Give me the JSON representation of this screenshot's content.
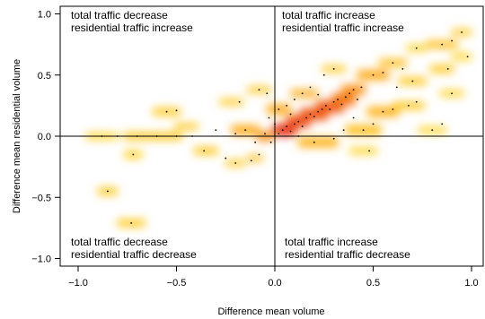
{
  "chart_data": {
    "type": "heatmap",
    "subtype": "smoothed-scatter",
    "xlabel": "Difference mean volume",
    "ylabel": "Difference mean residential volume",
    "xlim": [
      -1.0,
      1.05
    ],
    "ylim": [
      -1.05,
      1.05
    ],
    "xticks": [
      -1.0,
      -0.5,
      0.0,
      0.5,
      1.0
    ],
    "xtick_labels": [
      "−1.0",
      "−0.5",
      "0.0",
      "0.5",
      "1.0"
    ],
    "yticks": [
      -1.0,
      -0.5,
      0.0,
      0.5,
      1.0
    ],
    "ytick_labels": [
      "−1.0",
      "−0.5",
      "0.0",
      "0.5",
      "1.0"
    ],
    "reference_lines": {
      "x": 0,
      "y": 0
    },
    "colors": {
      "low": "#ffff00",
      "mid": "#ff8c00",
      "high": "#e00000",
      "point": "#000000"
    },
    "quadrant_annotations": [
      {
        "position": "top-left",
        "lines": [
          "total traffic decrease",
          "residential traffic increase"
        ]
      },
      {
        "position": "top-right",
        "lines": [
          "total traffic increase",
          "residential traffic increase"
        ]
      },
      {
        "position": "bottom-left",
        "lines": [
          "total traffic decrease",
          "residential traffic decrease"
        ]
      },
      {
        "position": "bottom-right",
        "lines": [
          "total traffic increase",
          "residential traffic decrease"
        ]
      }
    ],
    "density_tiles": [
      {
        "x": -0.85,
        "y": -0.45,
        "w": 0.1,
        "h": 0.06,
        "d": 0.3
      },
      {
        "x": -0.73,
        "y": -0.71,
        "w": 0.14,
        "h": 0.06,
        "d": 0.3
      },
      {
        "x": -0.72,
        "y": -0.15,
        "w": 0.09,
        "h": 0.06,
        "d": 0.25
      },
      {
        "x": -0.55,
        "y": 0.2,
        "w": 0.14,
        "h": 0.06,
        "d": 0.3
      },
      {
        "x": -0.88,
        "y": 0.0,
        "w": 0.16,
        "h": 0.05,
        "d": 0.25
      },
      {
        "x": -0.62,
        "y": 0.0,
        "w": 0.3,
        "h": 0.06,
        "d": 0.3
      },
      {
        "x": -0.45,
        "y": 0.08,
        "w": 0.12,
        "h": 0.05,
        "d": 0.3
      },
      {
        "x": -0.35,
        "y": -0.12,
        "w": 0.12,
        "h": 0.06,
        "d": 0.3
      },
      {
        "x": -0.2,
        "y": -0.22,
        "w": 0.1,
        "h": 0.05,
        "d": 0.3
      },
      {
        "x": -0.1,
        "y": -0.18,
        "w": 0.08,
        "h": 0.05,
        "d": 0.35
      },
      {
        "x": -0.22,
        "y": 0.28,
        "w": 0.12,
        "h": 0.05,
        "d": 0.3
      },
      {
        "x": -0.08,
        "y": 0.38,
        "w": 0.12,
        "h": 0.05,
        "d": 0.3
      },
      {
        "x": -0.15,
        "y": 0.05,
        "w": 0.14,
        "h": 0.08,
        "d": 0.45
      },
      {
        "x": -0.05,
        "y": 0.0,
        "w": 0.08,
        "h": 0.08,
        "d": 0.55
      },
      {
        "x": 0.05,
        "y": 0.05,
        "w": 0.12,
        "h": 0.1,
        "d": 0.9
      },
      {
        "x": 0.12,
        "y": 0.12,
        "w": 0.12,
        "h": 0.1,
        "d": 0.8
      },
      {
        "x": 0.2,
        "y": 0.18,
        "w": 0.14,
        "h": 0.1,
        "d": 0.75
      },
      {
        "x": 0.28,
        "y": 0.24,
        "w": 0.14,
        "h": 0.1,
        "d": 0.75
      },
      {
        "x": 0.35,
        "y": 0.3,
        "w": 0.12,
        "h": 0.1,
        "d": 0.65
      },
      {
        "x": 0.4,
        "y": 0.38,
        "w": 0.12,
        "h": 0.08,
        "d": 0.55
      },
      {
        "x": 0.02,
        "y": 0.22,
        "w": 0.12,
        "h": 0.08,
        "d": 0.45
      },
      {
        "x": 0.15,
        "y": 0.35,
        "w": 0.14,
        "h": 0.06,
        "d": 0.45
      },
      {
        "x": 0.22,
        "y": -0.05,
        "w": 0.2,
        "h": 0.08,
        "d": 0.4
      },
      {
        "x": 0.45,
        "y": 0.05,
        "w": 0.18,
        "h": 0.08,
        "d": 0.35
      },
      {
        "x": 0.55,
        "y": 0.2,
        "w": 0.16,
        "h": 0.08,
        "d": 0.4
      },
      {
        "x": 0.5,
        "y": 0.5,
        "w": 0.16,
        "h": 0.08,
        "d": 0.45
      },
      {
        "x": 0.6,
        "y": 0.6,
        "w": 0.14,
        "h": 0.06,
        "d": 0.35
      },
      {
        "x": 0.7,
        "y": 0.45,
        "w": 0.14,
        "h": 0.06,
        "d": 0.3
      },
      {
        "x": 0.68,
        "y": 0.25,
        "w": 0.16,
        "h": 0.06,
        "d": 0.3
      },
      {
        "x": 0.8,
        "y": 0.05,
        "w": 0.14,
        "h": 0.05,
        "d": 0.25
      },
      {
        "x": 0.85,
        "y": 0.75,
        "w": 0.16,
        "h": 0.06,
        "d": 0.35
      },
      {
        "x": 0.95,
        "y": 0.85,
        "w": 0.1,
        "h": 0.05,
        "d": 0.3
      },
      {
        "x": 0.95,
        "y": 0.65,
        "w": 0.1,
        "h": 0.05,
        "d": 0.25
      },
      {
        "x": 0.85,
        "y": 0.55,
        "w": 0.12,
        "h": 0.06,
        "d": 0.3
      },
      {
        "x": 0.72,
        "y": 0.72,
        "w": 0.1,
        "h": 0.05,
        "d": 0.25
      },
      {
        "x": 0.9,
        "y": 0.35,
        "w": 0.12,
        "h": 0.05,
        "d": 0.25
      },
      {
        "x": 0.45,
        "y": -0.12,
        "w": 0.14,
        "h": 0.05,
        "d": 0.25
      },
      {
        "x": 0.3,
        "y": 0.55,
        "w": 0.12,
        "h": 0.05,
        "d": 0.3
      }
    ],
    "points": [
      [
        -0.85,
        -0.45
      ],
      [
        -0.73,
        -0.71
      ],
      [
        -0.72,
        -0.15
      ],
      [
        -0.55,
        0.2
      ],
      [
        -0.5,
        0.21
      ],
      [
        -0.88,
        0.0
      ],
      [
        -0.8,
        0.0
      ],
      [
        -0.7,
        0.0
      ],
      [
        -0.6,
        0.0
      ],
      [
        -0.5,
        0.0
      ],
      [
        -0.42,
        0.0
      ],
      [
        -0.36,
        -0.12
      ],
      [
        -0.2,
        -0.22
      ],
      [
        -0.25,
        -0.18
      ],
      [
        -0.12,
        -0.2
      ],
      [
        -0.08,
        -0.15
      ],
      [
        -0.3,
        0.05
      ],
      [
        -0.2,
        0.02
      ],
      [
        -0.15,
        0.05
      ],
      [
        -0.1,
        -0.05
      ],
      [
        -0.05,
        0.02
      ],
      [
        -0.02,
        -0.05
      ],
      [
        -0.18,
        0.28
      ],
      [
        -0.08,
        0.38
      ],
      [
        -0.04,
        0.35
      ],
      [
        0.02,
        0.02
      ],
      [
        0.04,
        0.05
      ],
      [
        0.06,
        0.08
      ],
      [
        0.08,
        0.04
      ],
      [
        0.1,
        0.1
      ],
      [
        0.12,
        0.12
      ],
      [
        0.14,
        0.08
      ],
      [
        0.16,
        0.15
      ],
      [
        0.18,
        0.18
      ],
      [
        0.2,
        0.16
      ],
      [
        0.22,
        0.2
      ],
      [
        0.24,
        0.22
      ],
      [
        0.26,
        0.25
      ],
      [
        0.28,
        0.22
      ],
      [
        0.3,
        0.28
      ],
      [
        0.32,
        0.3
      ],
      [
        0.34,
        0.26
      ],
      [
        0.36,
        0.32
      ],
      [
        0.38,
        0.35
      ],
      [
        0.4,
        0.38
      ],
      [
        0.42,
        0.3
      ],
      [
        0.44,
        0.4
      ],
      [
        0.02,
        0.22
      ],
      [
        0.06,
        0.25
      ],
      [
        0.1,
        0.3
      ],
      [
        0.14,
        0.35
      ],
      [
        0.18,
        0.4
      ],
      [
        0.22,
        0.34
      ],
      [
        0.2,
        -0.05
      ],
      [
        0.3,
        -0.02
      ],
      [
        0.35,
        0.05
      ],
      [
        0.45,
        0.05
      ],
      [
        0.5,
        0.1
      ],
      [
        0.55,
        0.2
      ],
      [
        0.6,
        0.22
      ],
      [
        0.5,
        0.5
      ],
      [
        0.55,
        0.52
      ],
      [
        0.6,
        0.6
      ],
      [
        0.65,
        0.55
      ],
      [
        0.7,
        0.45
      ],
      [
        0.68,
        0.25
      ],
      [
        0.72,
        0.28
      ],
      [
        0.8,
        0.05
      ],
      [
        0.85,
        0.1
      ],
      [
        0.85,
        0.75
      ],
      [
        0.9,
        0.78
      ],
      [
        0.95,
        0.85
      ],
      [
        0.98,
        0.65
      ],
      [
        0.88,
        0.55
      ],
      [
        0.72,
        0.72
      ],
      [
        0.9,
        0.35
      ],
      [
        0.48,
        -0.12
      ],
      [
        0.3,
        0.55
      ],
      [
        0.25,
        0.5
      ],
      [
        0.0,
        0.1
      ],
      [
        -0.03,
        0.15
      ],
      [
        0.08,
        0.18
      ],
      [
        0.12,
        0.0
      ],
      [
        0.4,
        0.15
      ],
      [
        0.62,
        0.4
      ]
    ]
  }
}
